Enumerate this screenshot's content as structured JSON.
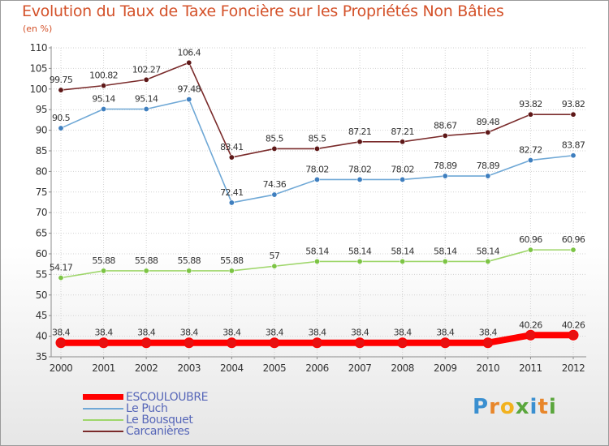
{
  "title": "Evolution du Taux de Taxe Foncière sur les Propriétés Non Bâties",
  "subtitle": "(en %)",
  "logo": [
    "P",
    "r",
    "o",
    "x",
    "i",
    "t",
    "i"
  ],
  "chart_data": {
    "type": "line",
    "title": "Evolution du Taux de Taxe Foncière sur les Propriétés Non Bâties",
    "ylabel": "(en %)",
    "xlabel": "",
    "ylim": [
      35,
      110
    ],
    "yticks": [
      35,
      40,
      45,
      50,
      55,
      60,
      65,
      70,
      75,
      80,
      85,
      90,
      95,
      100,
      105,
      110
    ],
    "categories": [
      "2000",
      "2001",
      "2002",
      "2003",
      "2004",
      "2005",
      "2006",
      "2007",
      "2008",
      "2009",
      "2010",
      "2011",
      "2012"
    ],
    "grid": true,
    "legend_position": "bottom-left",
    "series": [
      {
        "name": "ESCOULOUBRE",
        "color": "#ff0000",
        "marker": "#e81010",
        "values": [
          38.4,
          38.4,
          38.4,
          38.4,
          38.4,
          38.4,
          38.4,
          38.4,
          38.4,
          38.4,
          38.4,
          40.26,
          40.26
        ],
        "labels": [
          "38.4",
          "38.4",
          "38.4",
          "38.4",
          "38.4",
          "38.4",
          "38.4",
          "38.4",
          "38.4",
          "38.4",
          "38.4",
          "40.26",
          "40.26"
        ]
      },
      {
        "name": "Le Puch",
        "color": "#6fa8d6",
        "marker": "#3f7fbf",
        "values": [
          90.5,
          95.14,
          95.14,
          97.48,
          72.41,
          74.36,
          78.02,
          78.02,
          78.02,
          78.89,
          78.89,
          82.72,
          83.87
        ],
        "labels": [
          "90.5",
          "95.14",
          "95.14",
          "97.48",
          "72.41",
          "74.36",
          "78.02",
          "78.02",
          "78.02",
          "78.89",
          "78.89",
          "82.72",
          "83.87"
        ]
      },
      {
        "name": "Le Bousquet",
        "color": "#9ed66a",
        "marker": "#7cc444",
        "values": [
          54.17,
          55.88,
          55.88,
          55.88,
          55.88,
          57,
          58.14,
          58.14,
          58.14,
          58.14,
          58.14,
          60.96,
          60.96
        ],
        "labels": [
          "54.17",
          "55.88",
          "55.88",
          "55.88",
          "55.88",
          "57",
          "58.14",
          "58.14",
          "58.14",
          "58.14",
          "58.14",
          "60.96",
          "60.96"
        ]
      },
      {
        "name": "Carcanières",
        "color": "#7a2b2b",
        "marker": "#5e1818",
        "values": [
          99.75,
          100.82,
          102.27,
          106.4,
          83.41,
          85.5,
          85.5,
          87.21,
          87.21,
          88.67,
          89.48,
          93.82,
          93.82
        ],
        "labels": [
          "99.75",
          "100.82",
          "102.27",
          "106.4",
          "83.41",
          "85.5",
          "85.5",
          "87.21",
          "87.21",
          "88.67",
          "89.48",
          "93.82",
          "93.82"
        ]
      }
    ]
  }
}
